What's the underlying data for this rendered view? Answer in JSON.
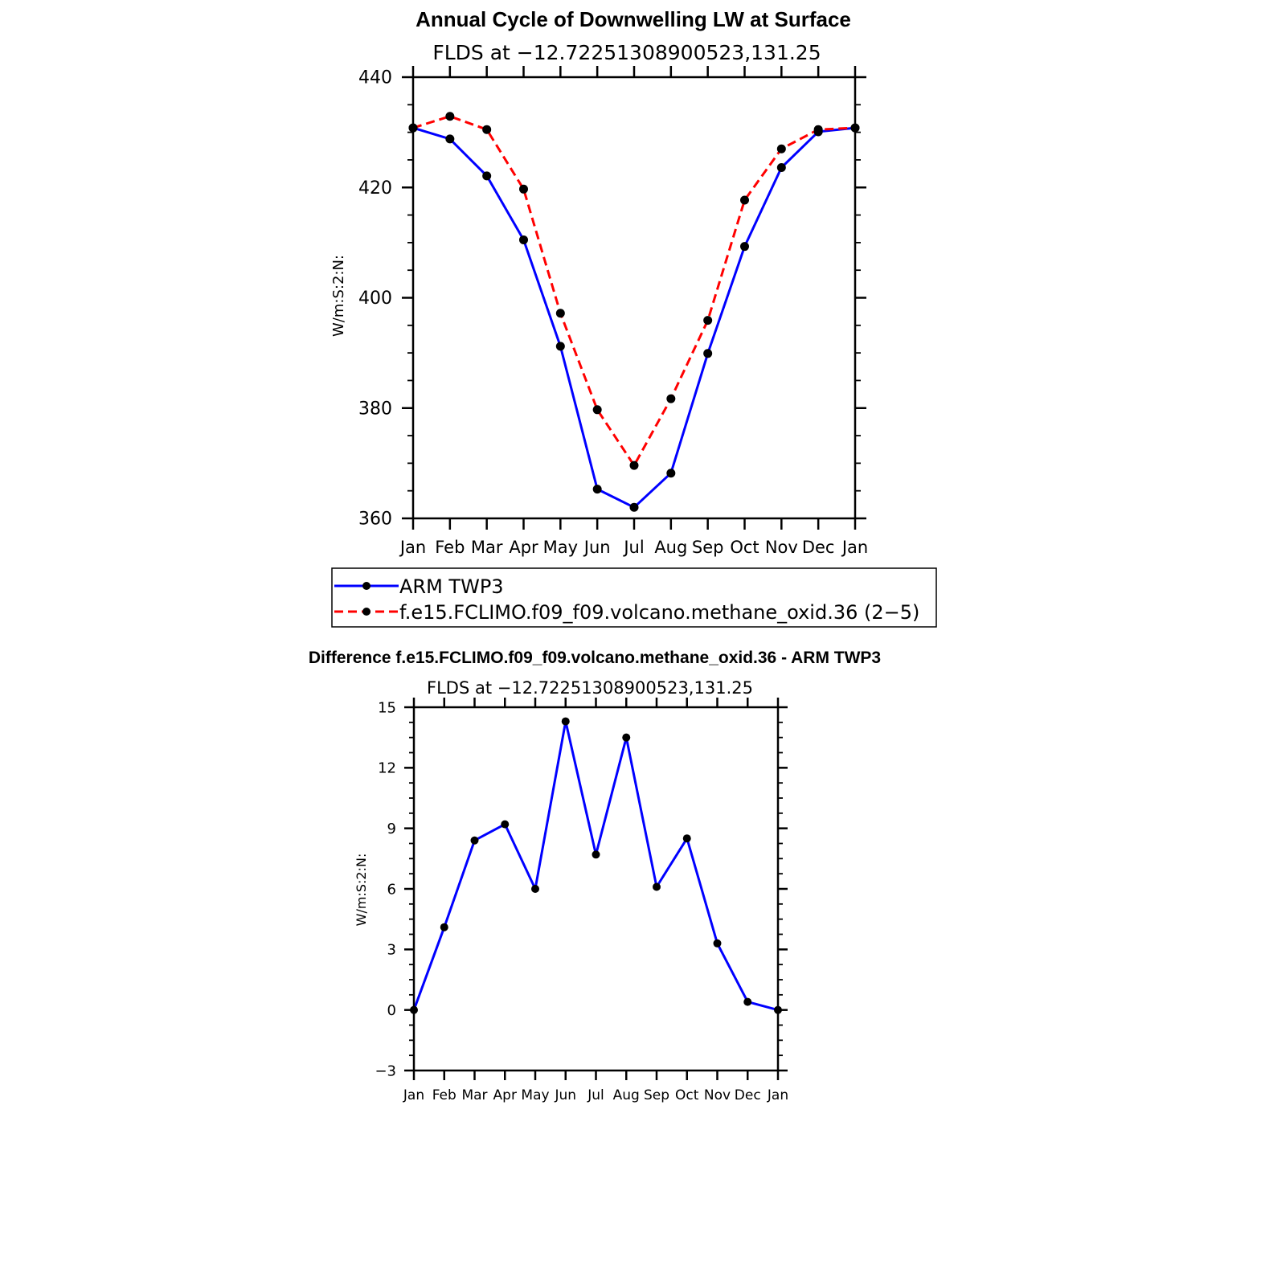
{
  "chart_data": [
    {
      "type": "line",
      "title": "Annual Cycle of Downwelling LW at Surface",
      "subtitle": "FLDS at −12.72251308900523,131.25",
      "ylabel": "W/m:S:2:N:",
      "xlabel": "",
      "categories": [
        "Jan",
        "Feb",
        "Mar",
        "Apr",
        "May",
        "Jun",
        "Jul",
        "Aug",
        "Sep",
        "Oct",
        "Nov",
        "Dec",
        "Jan"
      ],
      "ylim": [
        360,
        440
      ],
      "yticks": [
        "360",
        "380",
        "400",
        "420",
        "440"
      ],
      "series": [
        {
          "name": "ARM TWP3",
          "color": "#0000ff",
          "dash": "solid",
          "values": [
            430.8,
            428.8,
            422.1,
            410.5,
            391.2,
            365.3,
            362.0,
            368.2,
            389.9,
            409.3,
            423.6,
            430.1,
            430.8
          ]
        },
        {
          "name": "f.e15.FCLIMO.f09_f09.volcano.methane_oxid.36 (2−5)",
          "color": "#ff0000",
          "dash": "dashed",
          "values": [
            430.8,
            432.9,
            430.5,
            419.7,
            397.2,
            379.7,
            369.6,
            381.7,
            395.9,
            417.7,
            427.0,
            430.5,
            430.8
          ]
        }
      ],
      "legend": "below"
    },
    {
      "type": "line",
      "title": "Difference f.e15.FCLIMO.f09_f09.volcano.methane_oxid.36 - ARM TWP3",
      "subtitle": "FLDS at −12.72251308900523,131.25",
      "ylabel": "W/m:S:2:N:",
      "xlabel": "",
      "categories": [
        "Jan",
        "Feb",
        "Mar",
        "Apr",
        "May",
        "Jun",
        "Jul",
        "Aug",
        "Sep",
        "Oct",
        "Nov",
        "Dec",
        "Jan"
      ],
      "ylim": [
        -3,
        15
      ],
      "yticks": [
        "−3",
        "0",
        "3",
        "6",
        "9",
        "12",
        "15"
      ],
      "series": [
        {
          "color": "#0000ff",
          "dash": "solid",
          "values": [
            0.0,
            4.1,
            8.4,
            9.2,
            6.0,
            14.3,
            7.7,
            13.5,
            6.1,
            8.5,
            3.3,
            0.4,
            0.0
          ]
        }
      ]
    }
  ]
}
